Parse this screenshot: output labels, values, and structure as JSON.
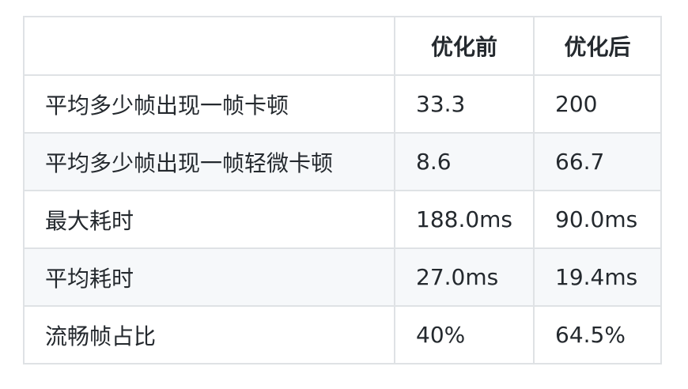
{
  "table": {
    "headers": [
      "",
      "优化前",
      "优化后"
    ],
    "rows": [
      [
        "平均多少帧出现一帧卡顿",
        "33.3",
        "200"
      ],
      [
        "平均多少帧出现一帧轻微卡顿",
        "8.6",
        "66.7"
      ],
      [
        "最大耗时",
        "188.0ms",
        "90.0ms"
      ],
      [
        "平均耗时",
        "27.0ms",
        "19.4ms"
      ],
      [
        "流畅帧占比",
        "40%",
        "64.5%"
      ]
    ]
  },
  "colors": {
    "border": "#dfe2e5",
    "alt_row_bg": "#f6f8fa",
    "text": "#24292e"
  }
}
